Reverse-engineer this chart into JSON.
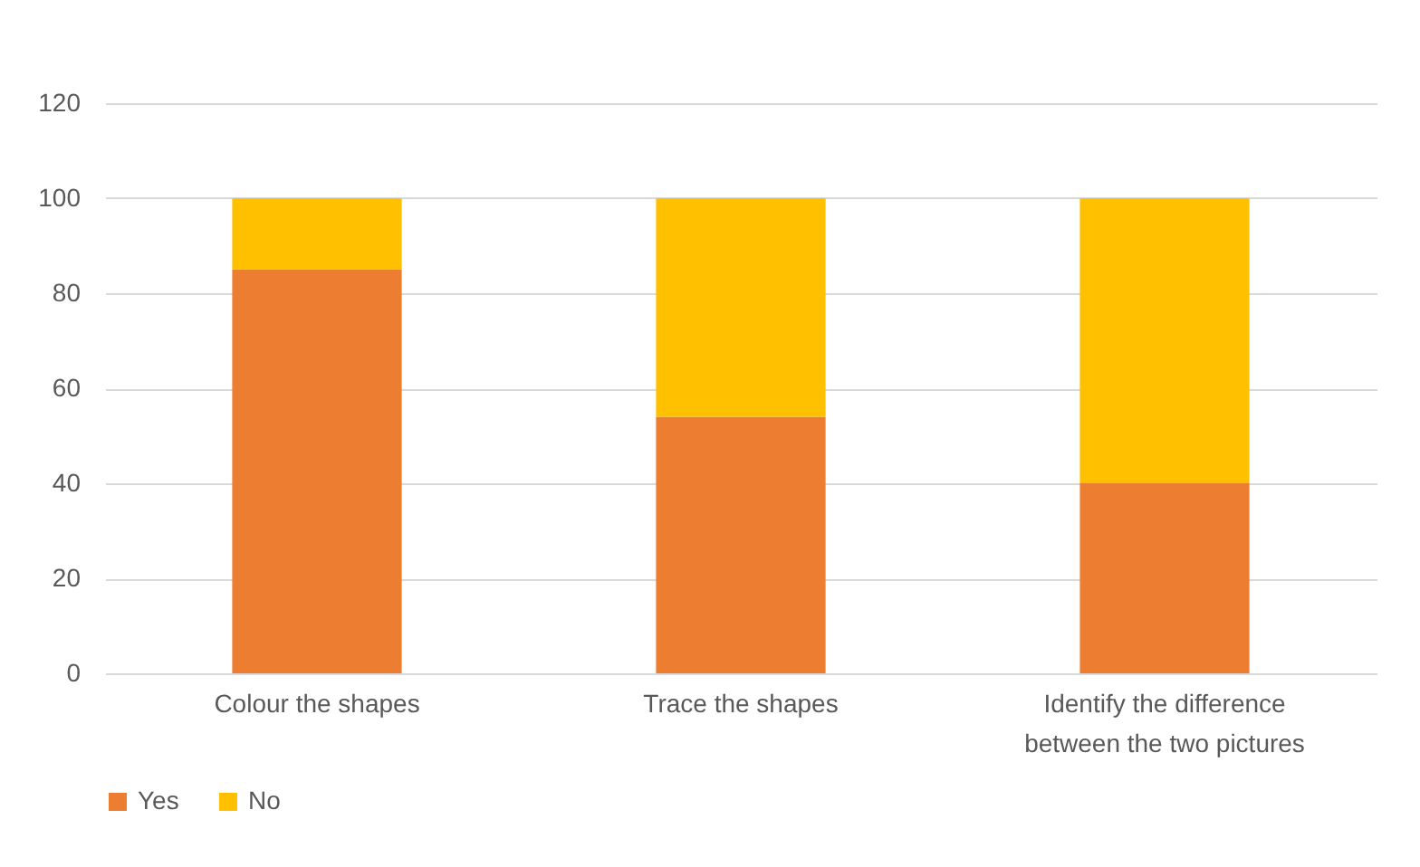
{
  "chart_data": {
    "type": "bar",
    "stacked": true,
    "categories": [
      "Colour the shapes",
      "Trace the shapes",
      "Identify the difference between the two pictures"
    ],
    "series": [
      {
        "name": "Yes",
        "color": "#ed7d31",
        "values": [
          85,
          54,
          40
        ]
      },
      {
        "name": "No",
        "color": "#ffc000",
        "values": [
          15,
          46,
          60
        ]
      }
    ],
    "ylim": [
      0,
      120
    ],
    "yticks": [
      0,
      20,
      40,
      60,
      80,
      100,
      120
    ],
    "grid": "y",
    "legend": "bottom"
  }
}
